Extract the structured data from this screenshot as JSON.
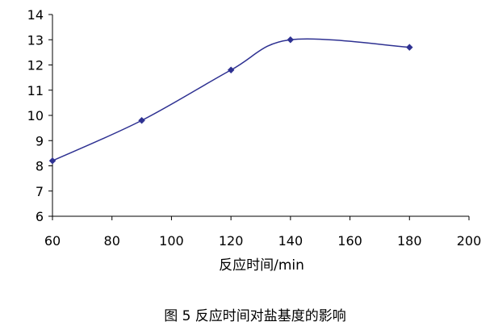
{
  "chart_data": {
    "type": "line",
    "title": "",
    "xlabel": "反应时间/min",
    "ylabel": "",
    "xlim": [
      60,
      200
    ],
    "ylim": [
      6,
      14
    ],
    "xticks": [
      60,
      80,
      100,
      120,
      140,
      160,
      180,
      200
    ],
    "yticks": [
      6,
      7,
      8,
      9,
      10,
      11,
      12,
      13,
      14
    ],
    "grid": false,
    "legend": "none",
    "series": [
      {
        "color": "#2E3192",
        "marker": "diamond",
        "smooth": true,
        "points": [
          {
            "x": 60,
            "y": 8.2
          },
          {
            "x": 90,
            "y": 9.8
          },
          {
            "x": 120,
            "y": 11.8
          },
          {
            "x": 140,
            "y": 13.0
          },
          {
            "x": 180,
            "y": 12.7
          }
        ]
      }
    ]
  },
  "caption": "图 5  反应时间对盐基度的影响"
}
